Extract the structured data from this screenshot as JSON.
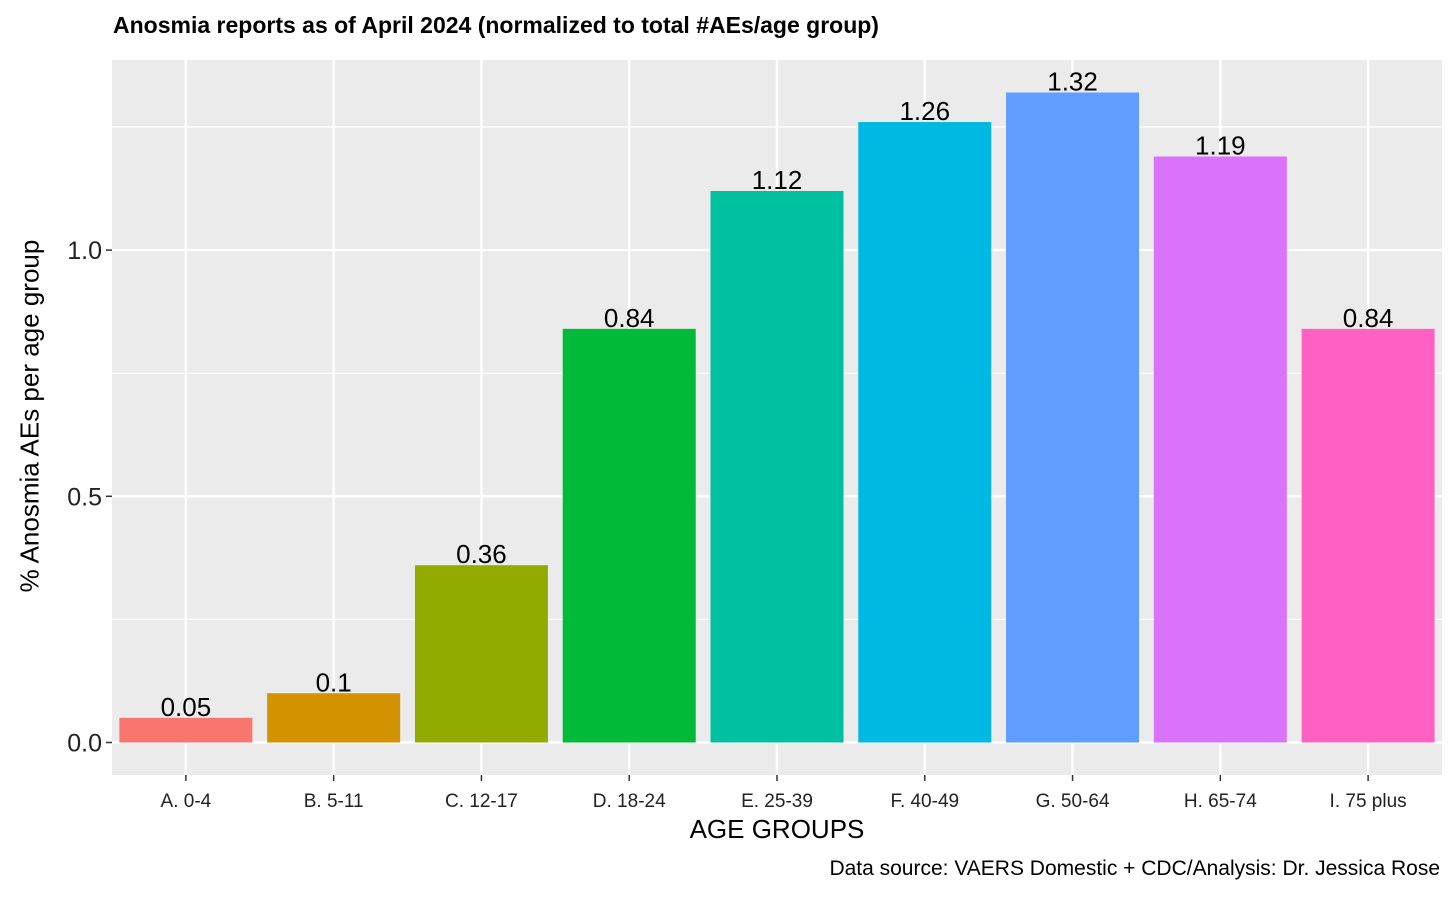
{
  "chart_data": {
    "type": "bar",
    "title": "Anosmia reports as of April 2024 (normalized to total #AEs/age group)",
    "xlabel": "AGE GROUPS",
    "ylabel": "% Anosmia AEs per age group",
    "caption": "Data source: VAERS Domestic + CDC/Analysis: Dr. Jessica Rose",
    "categories": [
      "A. 0-4",
      "B. 5-11",
      "C. 12-17",
      "D. 18-24",
      "E. 25-39",
      "F. 40-49",
      "G. 50-64",
      "H. 65-74",
      "I. 75 plus"
    ],
    "values": [
      0.05,
      0.1,
      0.36,
      0.84,
      1.12,
      1.26,
      1.32,
      1.19,
      0.84
    ],
    "value_labels": [
      "0.05",
      "0.1",
      "0.36",
      "0.84",
      "1.12",
      "1.26",
      "1.32",
      "1.19",
      "0.84"
    ],
    "colors": [
      "#F8766D",
      "#D39200",
      "#93AA00",
      "#00BA38",
      "#00C19F",
      "#00B9E3",
      "#619CFF",
      "#DB72FB",
      "#FF61C3"
    ],
    "ylim": [
      -0.066,
      1.386
    ],
    "yticks": [
      0.0,
      0.5,
      1.0
    ],
    "ytick_labels": [
      "0.0",
      "0.5",
      "1.0"
    ],
    "grid": true,
    "legend": "none",
    "panel_background": "#EBEBEB",
    "grid_color": "#FFFFFF"
  }
}
